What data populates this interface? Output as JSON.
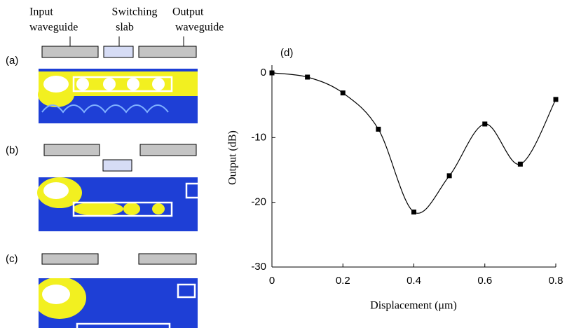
{
  "chart_data": {
    "type": "line",
    "title": "(d)",
    "x_label": "Displacement (μm)",
    "y_label": "Output (dB)",
    "x": [
      0,
      0.1,
      0.2,
      0.3,
      0.4,
      0.5,
      0.6,
      0.7,
      0.8
    ],
    "series": [
      {
        "color": "#000000",
        "values": [
          0,
          -0.65,
          -3.1,
          -8.7,
          -21.5,
          -15.9,
          -7.9,
          -14.1,
          -4.1
        ]
      }
    ],
    "xlim": [
      0,
      0.8
    ],
    "ylim": [
      -30,
      0
    ],
    "xticks": [
      0,
      0.2,
      0.4,
      0.6,
      0.8
    ],
    "yticks": [
      0,
      -10,
      -20,
      -30
    ],
    "grid": false
  },
  "panels": {
    "header": {
      "input": [
        "Input",
        "waveguide"
      ],
      "slab": [
        "Switching",
        "slab"
      ],
      "output": [
        "Output",
        "waveguide"
      ]
    },
    "labels": [
      "(a)",
      "(b)",
      "(c)"
    ]
  }
}
